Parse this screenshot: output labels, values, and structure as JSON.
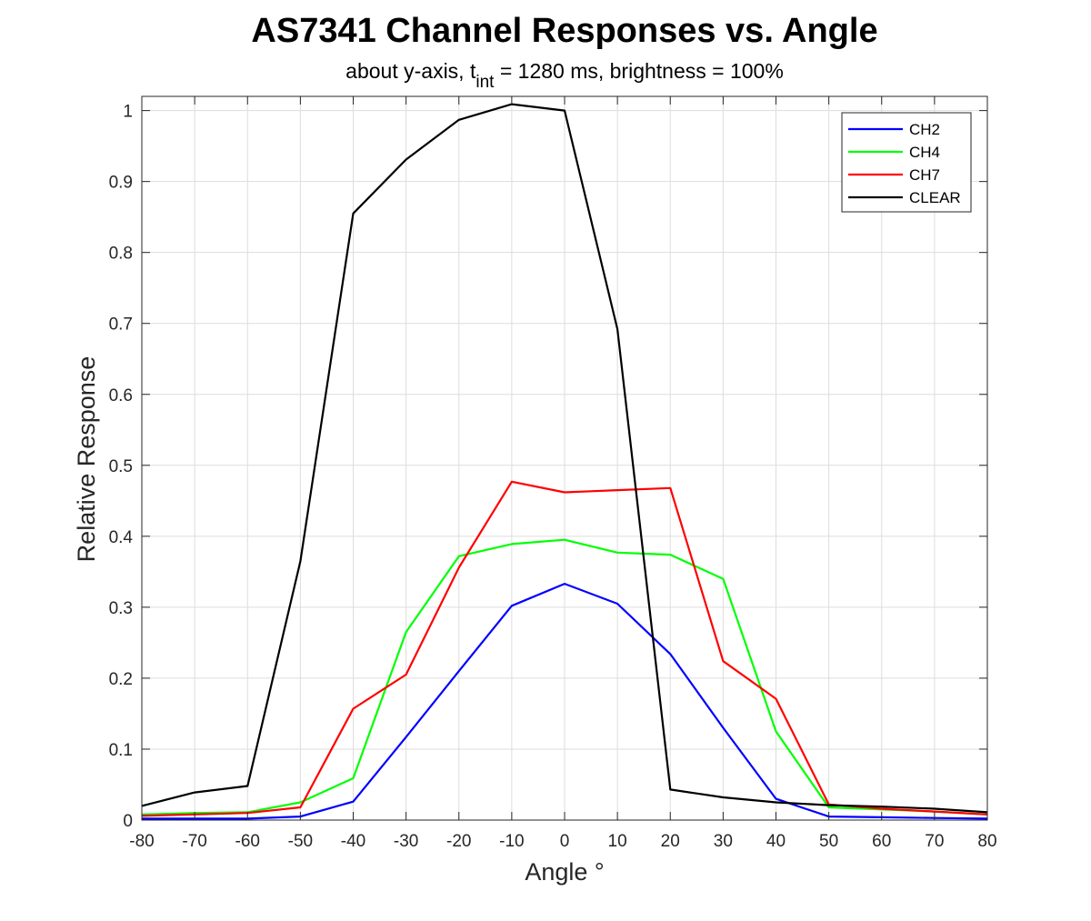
{
  "chart_data": {
    "type": "line",
    "title": "AS7341 Channel Responses vs. Angle",
    "subtitle": {
      "prefix": "about y-axis, t",
      "subscript": "int",
      "suffix": " = 1280 ms, brightness = 100%"
    },
    "xlabel": "Angle °",
    "ylabel": "Relative Response",
    "xlim": [
      -80,
      80
    ],
    "ylim": [
      0,
      1.02
    ],
    "xticks": [
      -80,
      -70,
      -60,
      -50,
      -40,
      -30,
      -20,
      -10,
      0,
      10,
      20,
      30,
      40,
      50,
      60,
      70,
      80
    ],
    "xtick_labels": [
      "-80",
      "-70",
      "-60",
      "-50",
      "-40",
      "-30",
      "-20",
      "-10",
      "0",
      "10",
      "20",
      "30",
      "40",
      "50",
      "60",
      "70",
      "80"
    ],
    "yticks": [
      0,
      0.1,
      0.2,
      0.3,
      0.4,
      0.5,
      0.6,
      0.7,
      0.8,
      0.9,
      1
    ],
    "ytick_labels": [
      "0",
      "0.1",
      "0.2",
      "0.3",
      "0.4",
      "0.5",
      "0.6",
      "0.7",
      "0.8",
      "0.9",
      "1"
    ],
    "grid": true,
    "legend_position": "top-right",
    "x": [
      -80,
      -70,
      -60,
      -50,
      -40,
      -30,
      -20,
      -10,
      0,
      10,
      20,
      30,
      40,
      50,
      60,
      70,
      80
    ],
    "series": [
      {
        "name": "CH2",
        "color": "#0000ff",
        "values": [
          0.002,
          0.002,
          0.002,
          0.005,
          0.026,
          0.117,
          0.21,
          0.302,
          0.333,
          0.305,
          0.234,
          0.13,
          0.03,
          0.005,
          0.004,
          0.003,
          0.002
        ]
      },
      {
        "name": "CH4",
        "color": "#00ff00",
        "values": [
          0.008,
          0.01,
          0.011,
          0.025,
          0.059,
          0.265,
          0.372,
          0.389,
          0.395,
          0.377,
          0.374,
          0.34,
          0.125,
          0.018,
          0.015,
          0.012,
          0.008
        ]
      },
      {
        "name": "CH7",
        "color": "#ff0000",
        "values": [
          0.006,
          0.008,
          0.01,
          0.018,
          0.157,
          0.205,
          0.356,
          0.477,
          0.462,
          0.465,
          0.468,
          0.224,
          0.171,
          0.022,
          0.016,
          0.012,
          0.008
        ]
      },
      {
        "name": "CLEAR",
        "color": "#000000",
        "values": [
          0.02,
          0.039,
          0.048,
          0.365,
          0.855,
          0.931,
          0.987,
          1.009,
          1.0,
          0.692,
          0.043,
          0.032,
          0.025,
          0.021,
          0.019,
          0.016,
          0.011
        ]
      }
    ]
  }
}
